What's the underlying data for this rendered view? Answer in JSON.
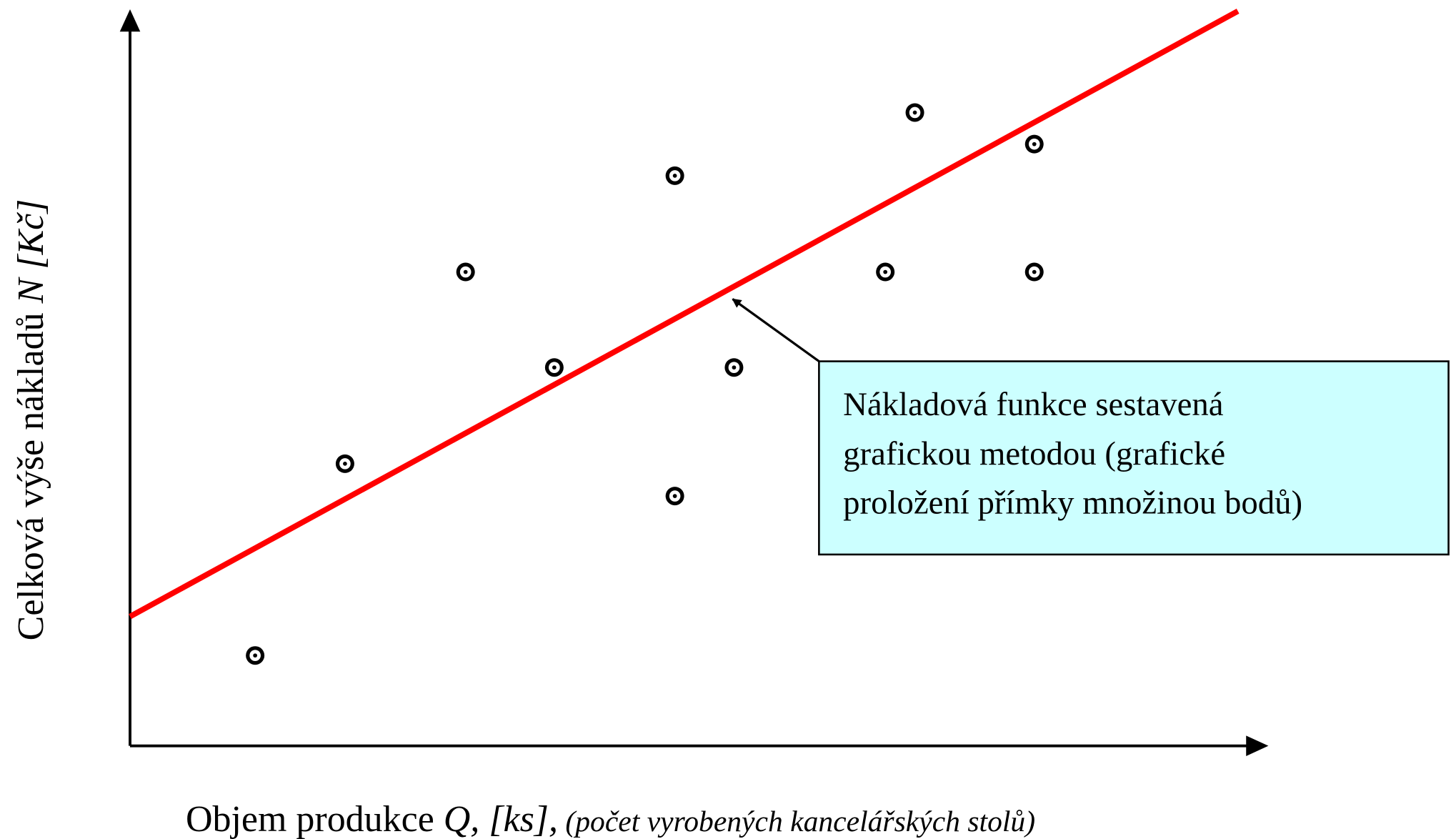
{
  "chart_data": {
    "type": "scatter",
    "xlabel": [
      "Objem produkce ",
      "Q, [ks],",
      " (počet vyrobených kancelářských stolů)"
    ],
    "ylabel": [
      "Celková výše nákladů ",
      "N [Kč]"
    ],
    "xlim": [
      0,
      100
    ],
    "ylim": [
      0,
      100
    ],
    "color": "#000000",
    "x": [
      11.0,
      18.9,
      29.5,
      37.3,
      47.9,
      47.9,
      53.1,
      66.4,
      69.0,
      79.5,
      79.5
    ],
    "values": [
      12.3,
      38.4,
      64.5,
      51.5,
      77.6,
      34.0,
      51.5,
      64.5,
      86.2,
      81.9,
      64.5
    ],
    "fit_line": {
      "color": "#ff0000",
      "x": [
        0,
        97.4
      ],
      "y": [
        17.6,
        100
      ]
    },
    "annotation": [
      "Nákladová funkce sestavená",
      "grafickou metodou (grafické",
      "proložení přímky množinou bodů)"
    ]
  }
}
